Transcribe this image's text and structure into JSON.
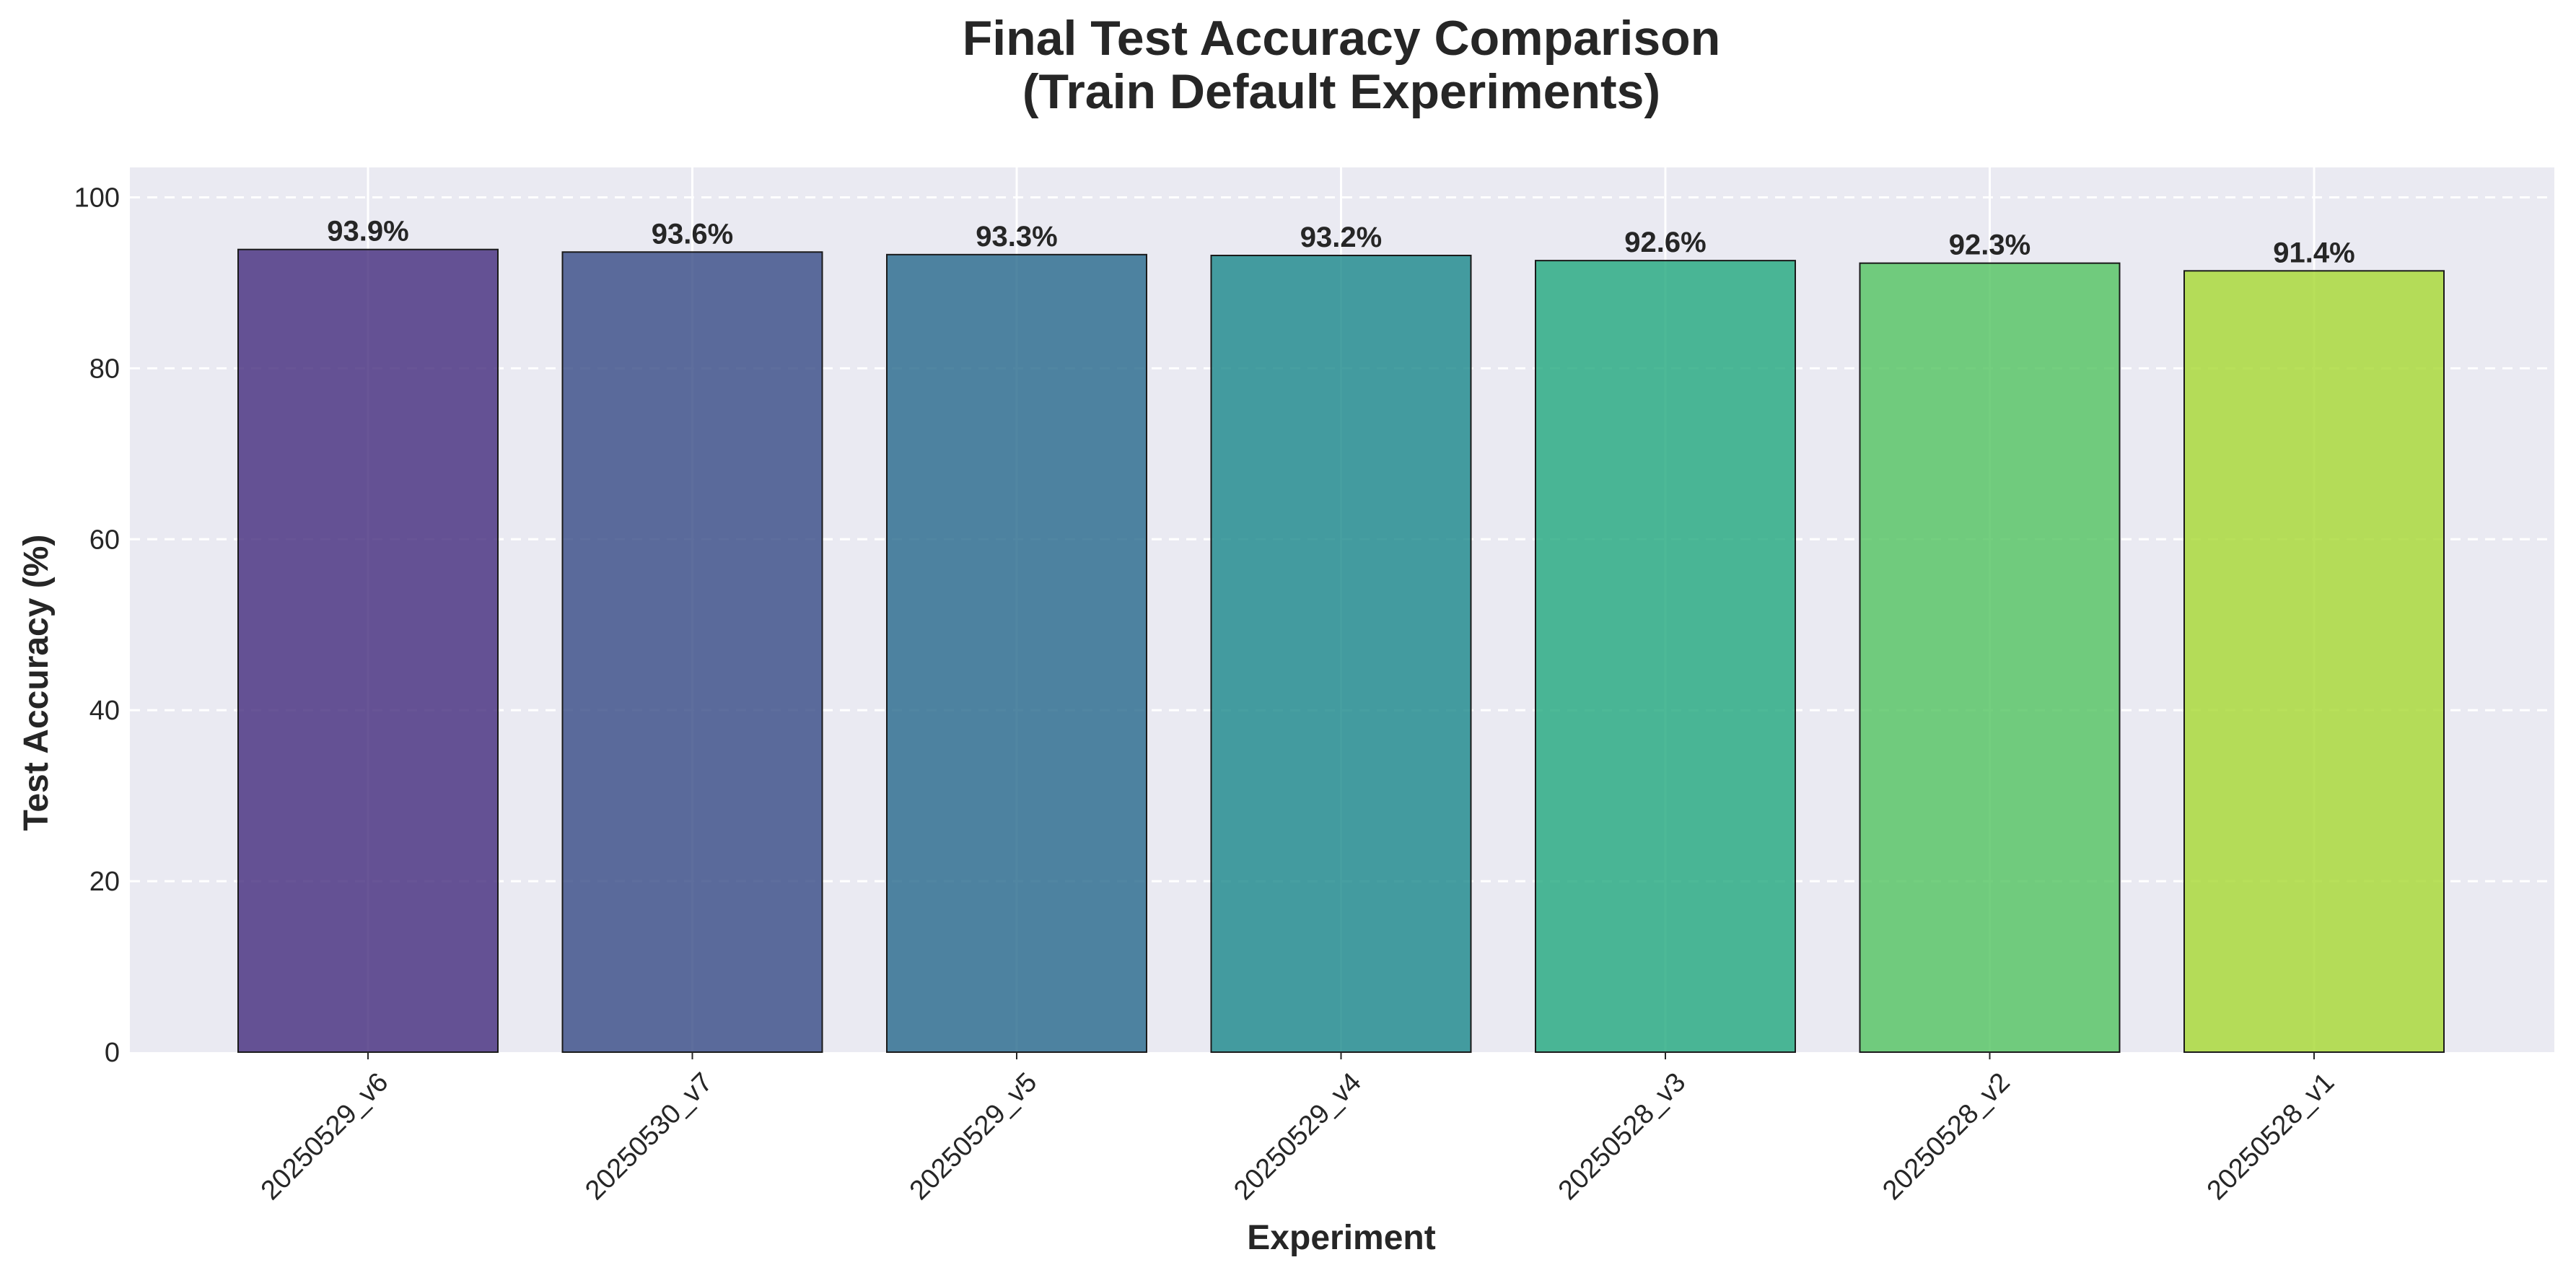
{
  "chart_data": {
    "type": "bar",
    "title_lines": [
      "Final Test Accuracy Comparison",
      "(Train Default Experiments)"
    ],
    "xlabel": "Experiment",
    "ylabel": "Test Accuracy (%)",
    "categories": [
      "20250529_v6",
      "20250530_v7",
      "20250529_v5",
      "20250529_v4",
      "20250528_v3",
      "20250528_v2",
      "20250528_v1"
    ],
    "values": [
      93.9,
      93.6,
      93.3,
      93.2,
      92.6,
      92.3,
      91.4
    ],
    "data_labels": [
      "93.9%",
      "93.6%",
      "93.3%",
      "93.2%",
      "92.6%",
      "92.3%",
      "91.4%"
    ],
    "bar_colors": [
      "#47307f",
      "#3a4e88",
      "#2b6b8d",
      "#1f8a8c",
      "#26aa80",
      "#56c463",
      "#a8d936"
    ],
    "yticks": [
      0,
      20,
      40,
      60,
      80,
      100
    ],
    "ylim": [
      0,
      103.5
    ],
    "grid": true,
    "background": "#eaeaf2"
  }
}
